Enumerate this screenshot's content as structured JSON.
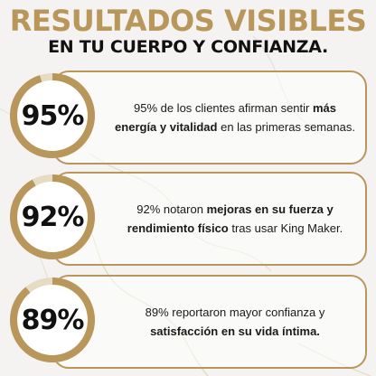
{
  "header": {
    "title": "RESULTADOS VISIBLES",
    "subtitle": "EN TU CUERPO Y CONFIANZA."
  },
  "colors": {
    "accent": "#b9965a",
    "ring_track": "#e6dcc4",
    "text": "#111111"
  },
  "stats": [
    {
      "percent_label": "95%",
      "value": 0.95,
      "text_before": "95% de los clientes afirman sentir ",
      "text_bold": "más energía y vitalidad",
      "text_after": " en las primeras semanas."
    },
    {
      "percent_label": "92%",
      "value": 0.92,
      "text_before": "92% notaron ",
      "text_bold": "mejoras en su fuerza y rendimiento físico",
      "text_after": " tras usar King Maker."
    },
    {
      "percent_label": "89%",
      "value": 0.89,
      "text_before": "89% reportaron mayor confianza y ",
      "text_bold": "satisfacción en su vida íntima.",
      "text_after": ""
    }
  ]
}
